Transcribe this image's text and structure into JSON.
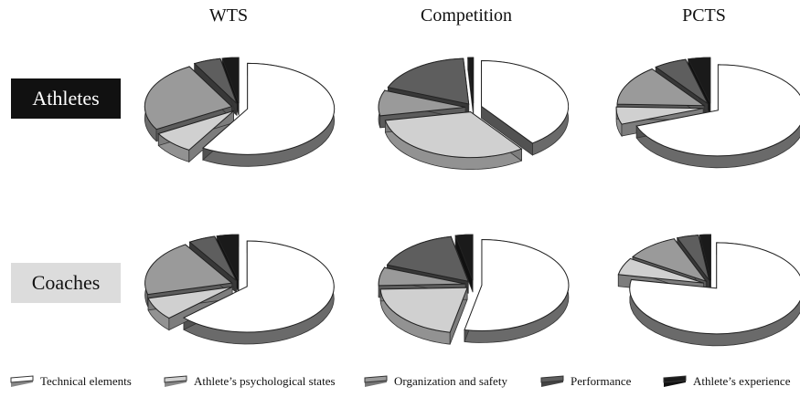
{
  "chart_data": {
    "type": "pie",
    "columns": [
      "WTS",
      "Competition",
      "PCTS"
    ],
    "rows": [
      "Athletes",
      "Coaches"
    ],
    "categories": [
      "Technical elements",
      "Athlete’s psychological states",
      "Organization and safety",
      "Performance",
      "Athlete’s experience"
    ],
    "colors": [
      "#ffffff",
      "#d0d0d0",
      "#9a9a9a",
      "#5e5e5e",
      "#1a1a1a"
    ],
    "pies": [
      {
        "row": "Athletes",
        "column": "WTS",
        "values": [
          58,
          8,
          25,
          5,
          3
        ]
      },
      {
        "row": "Athletes",
        "column": "Competition",
        "values": [
          40,
          32,
          9,
          18,
          1
        ]
      },
      {
        "row": "Athletes",
        "column": "PCTS",
        "values": [
          68,
          6,
          14,
          6,
          4
        ]
      },
      {
        "row": "Coaches",
        "column": "WTS",
        "values": [
          63,
          8,
          20,
          5,
          4
        ]
      },
      {
        "row": "Coaches",
        "column": "Competition",
        "values": [
          50,
          20,
          6,
          15,
          3
        ]
      },
      {
        "row": "Coaches",
        "column": "PCTS",
        "values": [
          78,
          6,
          10,
          4,
          2
        ]
      }
    ]
  }
}
